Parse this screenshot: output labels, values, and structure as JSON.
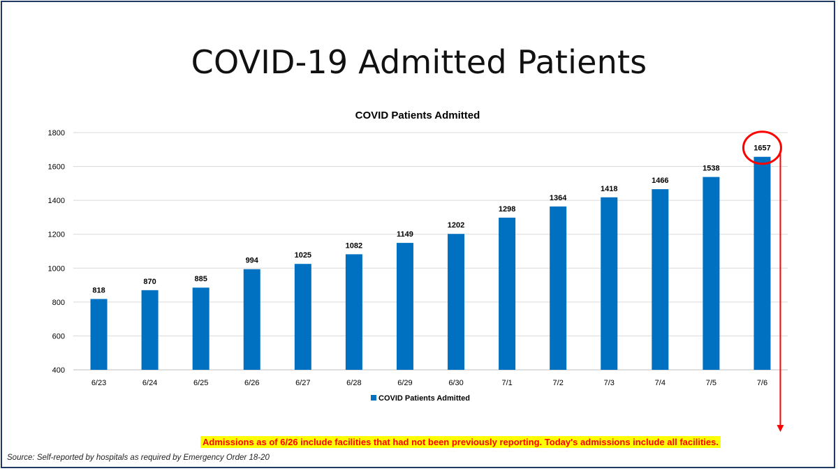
{
  "slide": {
    "title": "COVID-19 Admitted Patients",
    "note": "Admissions as of 6/26 include facilities that had not been previously reporting. Today's admissions include all facilities.",
    "source": "Source: Self-reported by hospitals as required by Emergency Order 18-20"
  },
  "colors": {
    "bar": "#0070c0",
    "highlight": "#ff0000",
    "note_bg": "#ffff00",
    "grid": "#d9d9d9"
  },
  "chart_data": {
    "type": "bar",
    "title": "COVID Patients Admitted",
    "categories": [
      "6/23",
      "6/24",
      "6/25",
      "6/26",
      "6/27",
      "6/28",
      "6/29",
      "6/30",
      "7/1",
      "7/2",
      "7/3",
      "7/4",
      "7/5",
      "7/6"
    ],
    "series": [
      {
        "name": "COVID Patients Admitted",
        "values": [
          818,
          870,
          885,
          994,
          1025,
          1082,
          1149,
          1202,
          1298,
          1364,
          1418,
          1466,
          1538,
          1657
        ]
      }
    ],
    "ylim": [
      400,
      1800
    ],
    "yticks": [
      400,
      600,
      800,
      1000,
      1200,
      1400,
      1600,
      1800
    ],
    "grid": true,
    "legend": "bottom",
    "highlighted_category": "7/6"
  }
}
